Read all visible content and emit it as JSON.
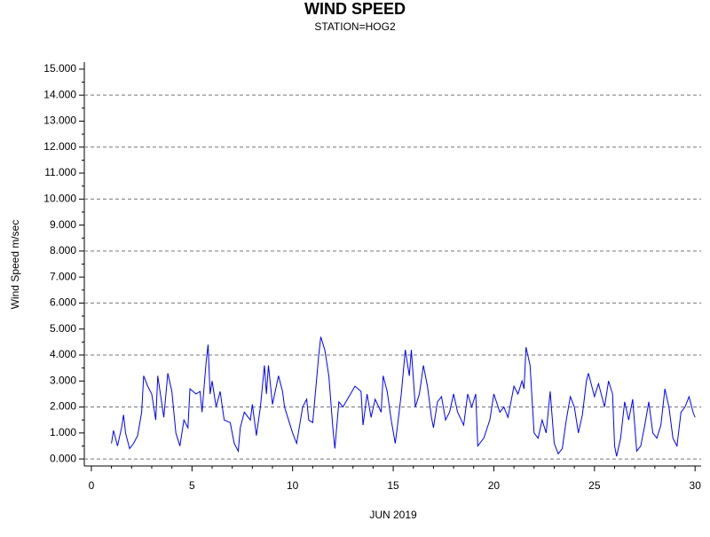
{
  "chart_data": {
    "type": "line",
    "title": "WIND SPEED",
    "subtitle": "STATION=HOG2",
    "x_label": "JUN 2019",
    "y_label": "Wind Speed m/sec",
    "color": "#0000ff",
    "xlim": [
      -0.35,
      30.3
    ],
    "xticks": [
      0,
      5,
      10,
      15,
      20,
      25,
      30
    ],
    "xminorticks": [
      1,
      2,
      3,
      4,
      6,
      7,
      8,
      9,
      11,
      12,
      13,
      14,
      16,
      17,
      18,
      19,
      21,
      22,
      23,
      24,
      26,
      27,
      28,
      29
    ],
    "ylim": [
      -0.27,
      15.27
    ],
    "yticks": [
      {
        "value": 0,
        "label": "0.000"
      },
      {
        "value": 1,
        "label": "1.000"
      },
      {
        "value": 2,
        "label": "2.000"
      },
      {
        "value": 3,
        "label": "3.000"
      },
      {
        "value": 4,
        "label": "4.000"
      },
      {
        "value": 5,
        "label": "5.000"
      },
      {
        "value": 6,
        "label": "6.000"
      },
      {
        "value": 7,
        "label": "7.000"
      },
      {
        "value": 8,
        "label": "8.000"
      },
      {
        "value": 9,
        "label": "9.000"
      },
      {
        "value": 10,
        "label": "10.000"
      },
      {
        "value": 11,
        "label": "11.000"
      },
      {
        "value": 12,
        "label": "12.000"
      },
      {
        "value": 13,
        "label": "13.000"
      },
      {
        "value": 14,
        "label": "14.000"
      },
      {
        "value": 15,
        "label": "15.000"
      }
    ],
    "yminorticks": [
      0.5,
      1.5,
      2.5,
      3.5,
      4.5,
      5.5,
      6.5,
      7.5,
      8.5,
      9.5,
      10.5,
      11.5,
      12.5,
      13.5,
      14.5
    ],
    "ygrid": [
      0,
      2,
      4,
      6,
      8,
      10,
      12,
      14
    ],
    "x": [
      1.0,
      1.1,
      1.3,
      1.5,
      1.6,
      1.7,
      1.9,
      2.1,
      2.3,
      2.5,
      2.6,
      2.8,
      3.0,
      3.2,
      3.3,
      3.6,
      3.8,
      4.0,
      4.2,
      4.4,
      4.6,
      4.8,
      4.9,
      5.2,
      5.4,
      5.5,
      5.7,
      5.8,
      5.9,
      6.0,
      6.2,
      6.4,
      6.6,
      6.9,
      7.1,
      7.3,
      7.4,
      7.6,
      7.9,
      8.0,
      8.2,
      8.4,
      8.6,
      8.7,
      8.8,
      9.0,
      9.3,
      9.5,
      9.6,
      9.8,
      10.0,
      10.2,
      10.5,
      10.7,
      10.8,
      11.0,
      11.3,
      11.4,
      11.6,
      11.8,
      12.0,
      12.1,
      12.3,
      12.5,
      12.8,
      13.1,
      13.4,
      13.5,
      13.7,
      13.9,
      14.1,
      14.4,
      14.5,
      14.7,
      14.9,
      15.1,
      15.2,
      15.4,
      15.6,
      15.8,
      15.9,
      16.1,
      16.3,
      16.5,
      16.7,
      16.9,
      17.0,
      17.2,
      17.4,
      17.6,
      17.8,
      18.0,
      18.2,
      18.5,
      18.7,
      18.9,
      19.1,
      19.2,
      19.5,
      19.8,
      20.0,
      20.3,
      20.5,
      20.7,
      21.0,
      21.2,
      21.4,
      21.5,
      21.6,
      21.8,
      22.0,
      22.2,
      22.4,
      22.6,
      22.8,
      23.0,
      23.2,
      23.4,
      23.6,
      23.8,
      24.0,
      24.2,
      24.4,
      24.6,
      24.7,
      25.0,
      25.2,
      25.5,
      25.7,
      25.9,
      26.0,
      26.1,
      26.3,
      26.5,
      26.7,
      26.9,
      27.1,
      27.3,
      27.5,
      27.7,
      27.9,
      28.1,
      28.3,
      28.5,
      28.7,
      28.9,
      29.1,
      29.3,
      29.5,
      29.7,
      29.9,
      30.0
    ],
    "values": [
      0.6,
      1.1,
      0.5,
      1.2,
      1.7,
      1.0,
      0.4,
      0.6,
      0.9,
      1.8,
      3.2,
      2.8,
      2.5,
      1.5,
      3.2,
      1.6,
      3.3,
      2.6,
      1.0,
      0.5,
      1.5,
      1.2,
      2.7,
      2.5,
      2.6,
      1.8,
      3.7,
      4.4,
      2.5,
      3.0,
      2.0,
      2.6,
      1.5,
      1.4,
      0.6,
      0.3,
      1.2,
      1.8,
      1.5,
      2.1,
      0.9,
      2.0,
      3.6,
      2.5,
      3.6,
      2.1,
      3.2,
      2.6,
      2.0,
      1.5,
      1.0,
      0.6,
      2.0,
      2.3,
      1.5,
      1.4,
      4.0,
      4.7,
      4.2,
      3.2,
      1.2,
      0.4,
      2.2,
      2.0,
      2.4,
      2.8,
      2.6,
      1.3,
      2.5,
      1.6,
      2.3,
      1.8,
      3.2,
      2.6,
      1.5,
      0.6,
      1.2,
      2.5,
      4.2,
      3.2,
      4.2,
      2.0,
      2.5,
      3.6,
      2.8,
      1.6,
      1.2,
      2.2,
      2.4,
      1.5,
      1.8,
      2.5,
      1.8,
      1.3,
      2.5,
      2.0,
      2.5,
      0.5,
      0.8,
      1.5,
      2.5,
      1.8,
      2.0,
      1.6,
      2.8,
      2.5,
      3.0,
      2.7,
      4.3,
      3.6,
      1.0,
      0.8,
      1.5,
      1.0,
      2.6,
      0.6,
      0.2,
      0.4,
      1.5,
      2.4,
      2.0,
      1.0,
      1.7,
      3.0,
      3.3,
      2.4,
      2.9,
      2.0,
      3.0,
      2.5,
      0.5,
      0.1,
      0.8,
      2.2,
      1.5,
      2.3,
      0.3,
      0.5,
      1.3,
      2.2,
      1.0,
      0.8,
      1.3,
      2.7,
      2.0,
      0.8,
      0.5,
      1.8,
      2.0,
      2.4,
      1.8,
      1.6
    ]
  }
}
